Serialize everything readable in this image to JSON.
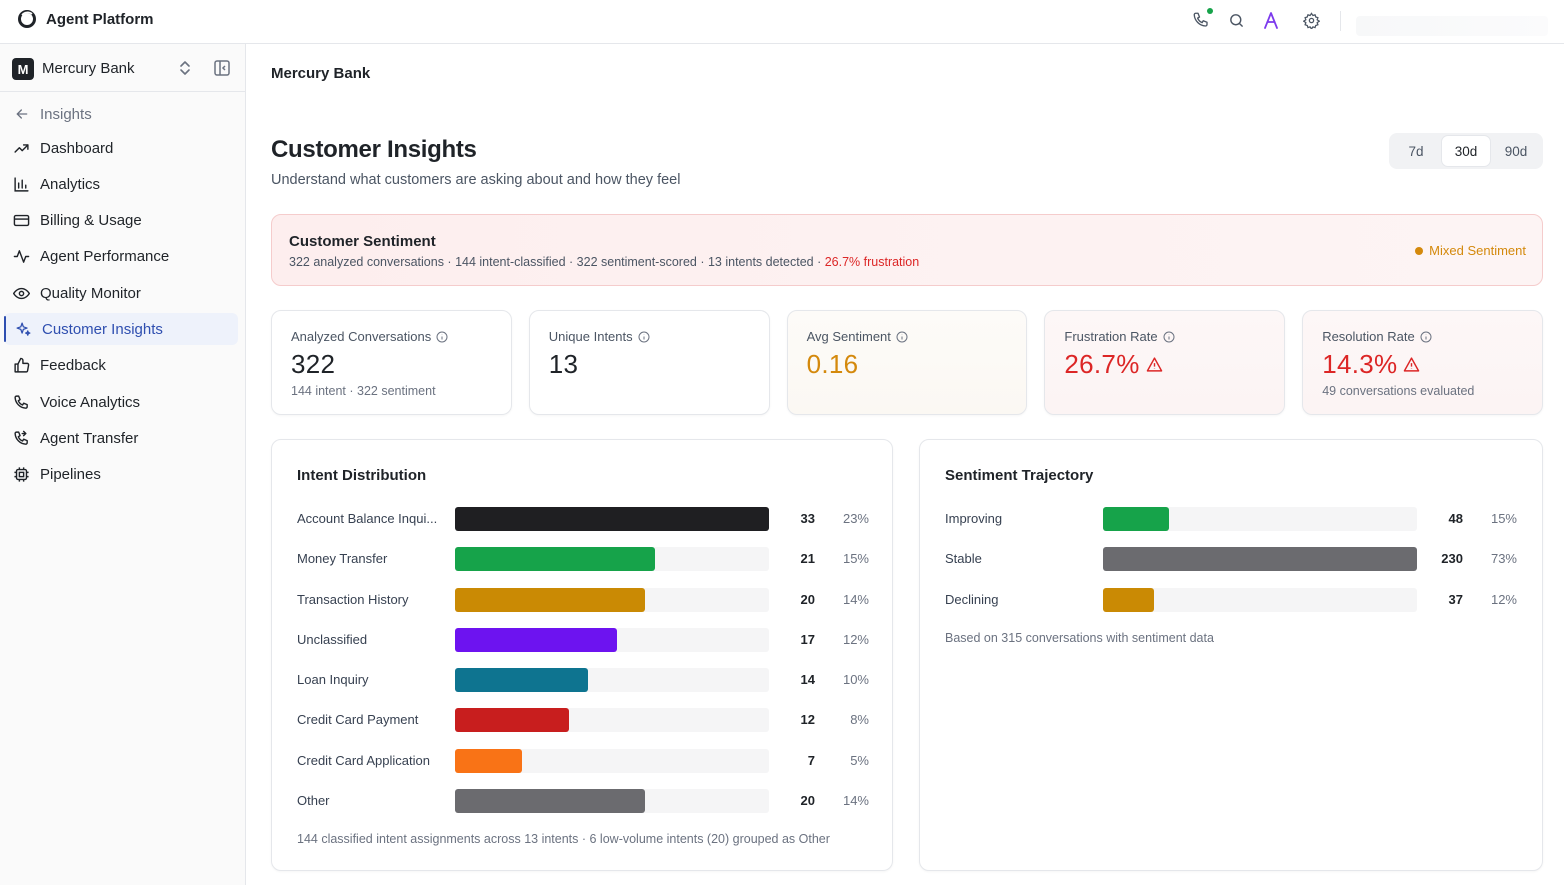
{
  "app": {
    "title": "Agent Platform"
  },
  "org": {
    "initial": "M",
    "name": "Mercury Bank"
  },
  "sidebar": {
    "back_label": "Insights",
    "items": [
      {
        "label": "Dashboard",
        "icon": "trending-up-icon"
      },
      {
        "label": "Analytics",
        "icon": "bar-chart-icon"
      },
      {
        "label": "Billing & Usage",
        "icon": "credit-card-icon"
      },
      {
        "label": "Agent Performance",
        "icon": "activity-icon"
      },
      {
        "label": "Quality Monitor",
        "icon": "eye-icon"
      },
      {
        "label": "Customer Insights",
        "icon": "sparkles-icon",
        "active": true
      },
      {
        "label": "Feedback",
        "icon": "thumbs-up-icon"
      },
      {
        "label": "Voice Analytics",
        "icon": "phone-icon"
      },
      {
        "label": "Agent Transfer",
        "icon": "phone-forward-icon"
      },
      {
        "label": "Pipelines",
        "icon": "cpu-icon"
      }
    ]
  },
  "header": {
    "breadcrumb": "Mercury Bank",
    "title": "Customer Insights",
    "subtitle": "Understand what customers are asking about and how they feel",
    "ranges": [
      "7d",
      "30d",
      "90d"
    ],
    "active_range": "30d"
  },
  "banner": {
    "title": "Customer Sentiment",
    "sub": "322 analyzed conversations · 144 intent-classified · 322 sentiment-scored · 13 intents detected · ",
    "sub_highlight": "26.7% frustration",
    "status": "Mixed Sentiment",
    "status_color": "#d4890c"
  },
  "kpis": [
    {
      "label": "Analyzed Conversations",
      "value": "322",
      "sub": "144 intent · 322 sentiment",
      "tone": "neutral"
    },
    {
      "label": "Unique Intents",
      "value": "13",
      "sub": "",
      "tone": "neutral"
    },
    {
      "label": "Avg Sentiment",
      "value": "0.16",
      "sub": "",
      "tone": "amber"
    },
    {
      "label": "Frustration Rate",
      "value": "26.7%",
      "sub": "",
      "tone": "red",
      "warning": true
    },
    {
      "label": "Resolution Rate",
      "value": "14.3%",
      "sub": "49 conversations evaluated",
      "tone": "red",
      "warning": true
    }
  ],
  "intent": {
    "title": "Intent Distribution",
    "max": 33,
    "rows": [
      {
        "label": "Account Balance Inqui...",
        "count": 33,
        "pct": "23%",
        "color": "#1f1f22"
      },
      {
        "label": "Money Transfer",
        "count": 21,
        "pct": "15%",
        "color": "#16a34a"
      },
      {
        "label": "Transaction History",
        "count": 20,
        "pct": "14%",
        "color": "#ca8a04"
      },
      {
        "label": "Unclassified",
        "count": 17,
        "pct": "12%",
        "color": "#6d13f0"
      },
      {
        "label": "Loan Inquiry",
        "count": 14,
        "pct": "10%",
        "color": "#0e7490"
      },
      {
        "label": "Credit Card Payment",
        "count": 12,
        "pct": "8%",
        "color": "#c81e1e"
      },
      {
        "label": "Credit Card Application",
        "count": 7,
        "pct": "5%",
        "color": "#f97316"
      },
      {
        "label": "Other",
        "count": 20,
        "pct": "14%",
        "color": "#6b6b6f"
      }
    ],
    "footer": "144 classified intent assignments across 13 intents · 6 low-volume intents (20) grouped as Other"
  },
  "sentiment": {
    "title": "Sentiment Trajectory",
    "max": 230,
    "rows": [
      {
        "label": "Improving",
        "count": 48,
        "pct": "15%",
        "color": "#16a34a"
      },
      {
        "label": "Stable",
        "count": 230,
        "pct": "73%",
        "color": "#6b6b6f"
      },
      {
        "label": "Declining",
        "count": 37,
        "pct": "12%",
        "color": "#ca8a04"
      }
    ],
    "footer": "Based on 315 conversations with sentiment data"
  }
}
